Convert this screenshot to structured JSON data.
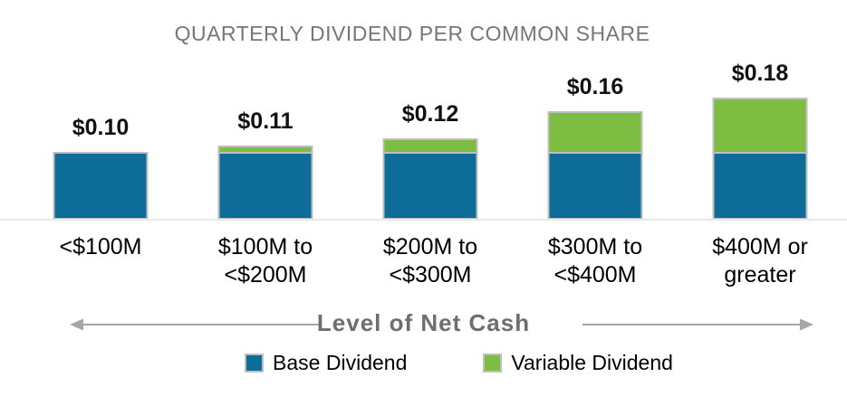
{
  "title": "QUARTERLY DIVIDEND PER COMMON SHARE",
  "axis_label": "Level of Net Cash",
  "colors": {
    "base_dividend": "#0D6C98",
    "variable_dividend": "#7DBE42",
    "bar_border": "#BFBFBF",
    "title_text": "#767676",
    "axis_label_text": "#6E6E6E",
    "arrow": "#A6A6A6",
    "baseline": "#E9E9E9",
    "label_text": "#000000"
  },
  "legend": [
    {
      "label": "Base Dividend",
      "color_key": "base_dividend"
    },
    {
      "label": "Variable Dividend",
      "color_key": "variable_dividend"
    }
  ],
  "chart_data": {
    "type": "bar",
    "stacked": true,
    "title": "QUARTERLY DIVIDEND PER COMMON SHARE",
    "xlabel": "Level of Net Cash",
    "ylabel": "",
    "ylim": [
      0,
      0.2
    ],
    "grid": false,
    "y_axis_visible": false,
    "legend_position": "bottom",
    "categories": [
      "<$100M",
      "$100M to <$200M",
      "$200M to <$300M",
      "$300M to <$400M",
      "$400M or greater"
    ],
    "category_lines": [
      [
        "<$100M"
      ],
      [
        "$100M to",
        "<$200M"
      ],
      [
        "$200M to",
        "<$300M"
      ],
      [
        "$300M to",
        "<$400M"
      ],
      [
        "$400M or",
        "greater"
      ]
    ],
    "series": [
      {
        "name": "Base Dividend",
        "values": [
          0.1,
          0.1,
          0.1,
          0.1,
          0.1
        ]
      },
      {
        "name": "Variable Dividend",
        "values": [
          0.0,
          0.01,
          0.02,
          0.06,
          0.08
        ]
      }
    ],
    "total_labels": [
      "$0.10",
      "$0.11",
      "$0.12",
      "$0.16",
      "$0.18"
    ]
  }
}
